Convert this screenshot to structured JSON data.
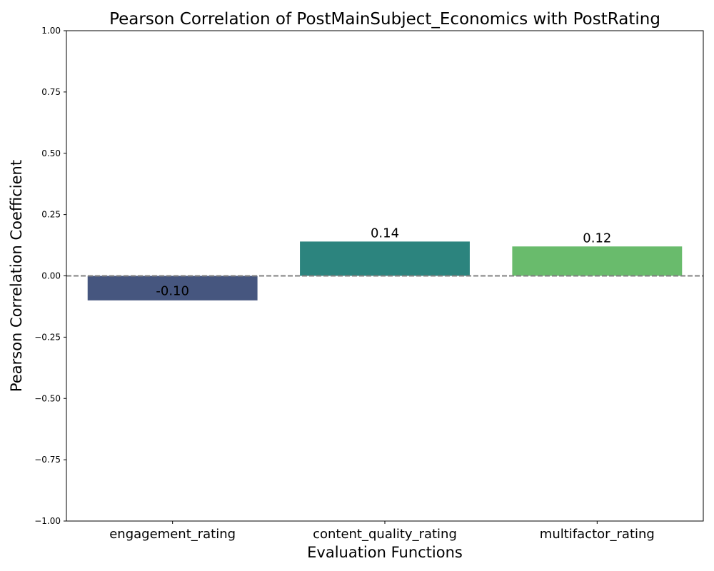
{
  "chart_data": {
    "type": "bar",
    "title": "Pearson Correlation of PostMainSubject_Economics   with PostRating",
    "xlabel": "Evaluation Functions",
    "ylabel": "Pearson Correlation Coefficient",
    "categories": [
      "engagement_rating",
      "content_quality_rating",
      "multifactor_rating"
    ],
    "values": [
      -0.1,
      0.14,
      0.12
    ],
    "value_labels": [
      "-0.10",
      "0.14",
      "0.12"
    ],
    "bar_colors": [
      "#46567f",
      "#2c847e",
      "#69bb6c"
    ],
    "ylim": [
      -1.0,
      1.0
    ],
    "yticks": [
      1.0,
      0.75,
      0.5,
      0.25,
      0.0,
      -0.25,
      -0.5,
      -0.75,
      -1.0
    ],
    "ytick_labels": [
      "1.00",
      "0.75",
      "0.50",
      "0.25",
      "0.00",
      "−0.25",
      "−0.50",
      "−0.75",
      "−1.00"
    ],
    "reference_line": {
      "y": 0.0,
      "style": "dashed",
      "color": "#808080"
    },
    "grid": false,
    "legend": "none"
  }
}
